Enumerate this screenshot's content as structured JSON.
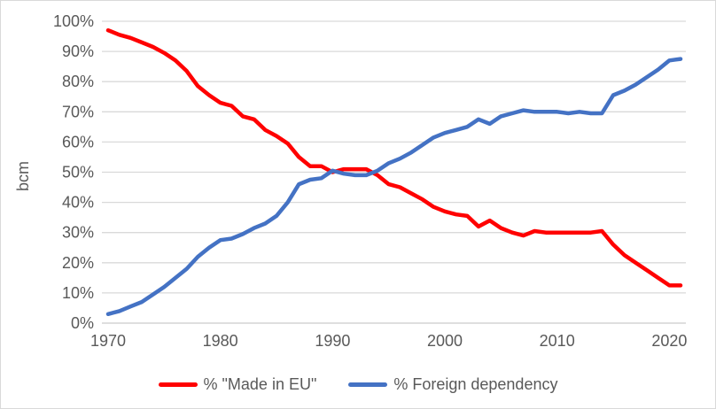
{
  "chart_data": {
    "type": "line",
    "ylabel": "bcm",
    "x": [
      1970,
      1971,
      1972,
      1973,
      1974,
      1975,
      1976,
      1977,
      1978,
      1979,
      1980,
      1981,
      1982,
      1983,
      1984,
      1985,
      1986,
      1987,
      1988,
      1989,
      1990,
      1991,
      1992,
      1993,
      1994,
      1995,
      1996,
      1997,
      1998,
      1999,
      2000,
      2001,
      2002,
      2003,
      2004,
      2005,
      2006,
      2007,
      2008,
      2009,
      2010,
      2011,
      2012,
      2013,
      2014,
      2015,
      2016,
      2017,
      2018,
      2019,
      2020,
      2021
    ],
    "series": [
      {
        "name": "% \"Made in EU\"",
        "color": "#FF0000",
        "values": [
          97,
          95.5,
          94.5,
          93,
          91.5,
          89.5,
          87,
          83.5,
          78.5,
          75.5,
          73,
          72,
          68.5,
          67.5,
          64,
          62,
          59.5,
          55,
          52,
          52,
          50,
          51,
          51,
          51,
          49,
          46,
          45,
          43,
          41,
          38.5,
          37,
          36,
          35.5,
          32,
          34,
          31.5,
          30,
          29,
          30.5,
          30,
          30,
          30,
          30,
          30,
          30.5,
          26,
          22.5,
          20,
          17.5,
          15,
          12.5,
          12.5
        ]
      },
      {
        "name": "% Foreign dependency",
        "color": "#4472C4",
        "values": [
          3,
          4,
          5.5,
          7,
          9.5,
          12,
          15,
          18,
          22,
          25,
          27.5,
          28,
          29.5,
          31.5,
          33,
          35.5,
          40,
          46,
          47.5,
          48,
          50.5,
          49.5,
          49,
          49,
          50.5,
          53,
          54.5,
          56.5,
          59,
          61.5,
          63,
          64,
          65,
          67.5,
          66,
          68.5,
          69.5,
          70.5,
          70,
          70,
          70,
          69.5,
          70,
          69.5,
          69.5,
          75.5,
          77,
          79,
          81.5,
          84,
          87,
          87.5
        ]
      }
    ],
    "x_ticks": [
      1970,
      1980,
      1990,
      2000,
      2010,
      2020
    ],
    "y_ticks": [
      "0%",
      "10%",
      "20%",
      "30%",
      "40%",
      "50%",
      "60%",
      "70%",
      "80%",
      "90%",
      "100%"
    ],
    "ylim": [
      0,
      100
    ],
    "xlim": [
      1970,
      2021
    ],
    "grid": "horizontal",
    "legend_position": "bottom"
  },
  "colors": {
    "background": "#FFFFFF",
    "border": "#D9D9D9",
    "grid": "#D9D9D9",
    "axis_line": "#C9C9C9",
    "tick_label": "#595959",
    "legend_text": "#595959"
  }
}
